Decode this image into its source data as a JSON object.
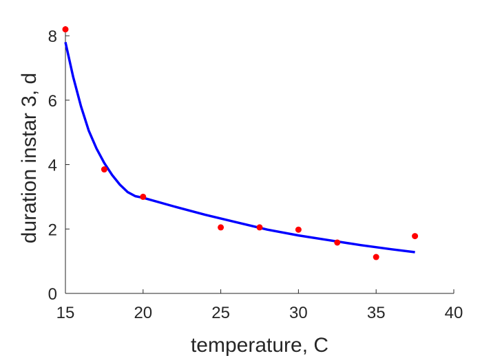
{
  "chart_data": {
    "type": "scatter",
    "title": "",
    "xlabel": "temperature, C",
    "ylabel": "duration instar 3, d",
    "xlim": [
      15,
      40
    ],
    "ylim": [
      0,
      8.3
    ],
    "xticks": [
      15,
      20,
      25,
      30,
      35,
      40
    ],
    "yticks": [
      0,
      2,
      4,
      6,
      8
    ],
    "grid": false,
    "legend": false,
    "colors": {
      "points": "#ff0000",
      "fit": "#0000ff",
      "axes": "#262626"
    },
    "series": [
      {
        "kind": "points",
        "x": [
          15,
          17.5,
          20,
          25,
          27.5,
          30,
          32.5,
          35,
          37.5
        ],
        "y": [
          8.2,
          3.85,
          3.0,
          2.05,
          2.05,
          1.98,
          1.58,
          1.13,
          1.78
        ]
      },
      {
        "kind": "line",
        "x": [
          15,
          15.5,
          16,
          16.5,
          17,
          17.5,
          18,
          18.5,
          19,
          19.5,
          20,
          22,
          24,
          26,
          28,
          30,
          32,
          34,
          36,
          37.5
        ],
        "y": [
          7.8,
          6.72,
          5.81,
          5.06,
          4.5,
          4.05,
          3.68,
          3.38,
          3.15,
          3.02,
          2.97,
          2.7,
          2.44,
          2.21,
          1.98,
          1.8,
          1.65,
          1.5,
          1.37,
          1.28
        ]
      }
    ]
  }
}
